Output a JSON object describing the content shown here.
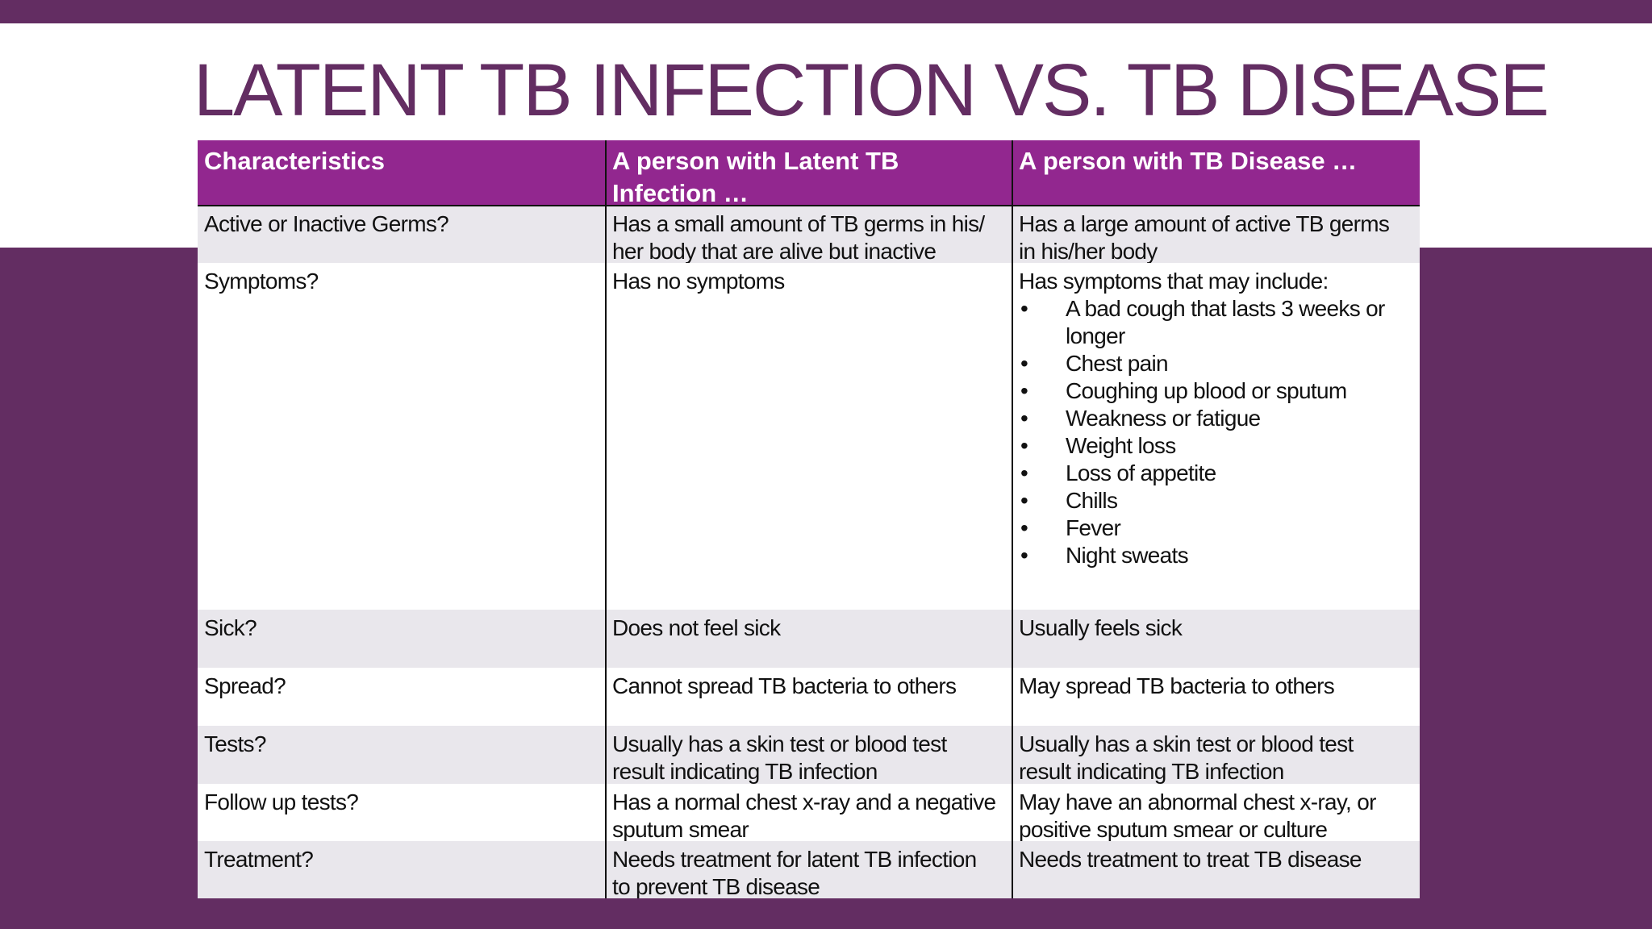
{
  "header": {
    "title": "LATENT TB INFECTION VS. TB DISEASE"
  },
  "table": {
    "columns": [
      [
        "Characteristics"
      ],
      [
        "A person with Latent TB",
        "Infection …"
      ],
      [
        "A person with TB Disease …"
      ]
    ],
    "rows": [
      [
        [
          "Active or Inactive Germs?"
        ],
        [
          "Has a small amount of TB germs in his/",
          "her body that are alive but inactive"
        ],
        [
          "Has a large amount of active TB germs",
          "in his/her body"
        ]
      ],
      [
        [
          "Symptoms?"
        ],
        [
          "Has no symptoms"
        ],
        {
          "intro": "Has symptoms that may include:",
          "bullets": [
            [
              "A bad cough that lasts 3 weeks or",
              "longer"
            ],
            [
              "Chest pain"
            ],
            [
              "Coughing up blood or sputum"
            ],
            [
              "Weakness or fatigue"
            ],
            [
              "Weight loss"
            ],
            [
              "Loss of appetite"
            ],
            [
              "Chills"
            ],
            [
              "Fever"
            ],
            [
              "Night sweats"
            ]
          ]
        }
      ],
      [
        [
          "Sick?"
        ],
        [
          "Does not feel sick"
        ],
        [
          "Usually feels sick"
        ]
      ],
      [
        [
          "Spread?"
        ],
        [
          "Cannot spread TB bacteria to others"
        ],
        [
          "May spread TB bacteria to others"
        ]
      ],
      [
        [
          "Tests?"
        ],
        [
          "Usually has a skin test or blood test",
          "result indicating TB infection"
        ],
        [
          "Usually has a skin test or blood test",
          "result indicating TB infection"
        ]
      ],
      [
        [
          "Follow up tests?"
        ],
        [
          "Has a normal chest x-ray and a negative",
          "sputum smear"
        ],
        [
          "May have an abnormal chest x-ray, or",
          "positive sputum smear or culture"
        ]
      ],
      [
        [
          "Treatment?"
        ],
        [
          "Needs treatment for latent TB infection",
          "to prevent TB disease"
        ],
        [
          "Needs treatment to treat TB disease"
        ]
      ]
    ]
  }
}
